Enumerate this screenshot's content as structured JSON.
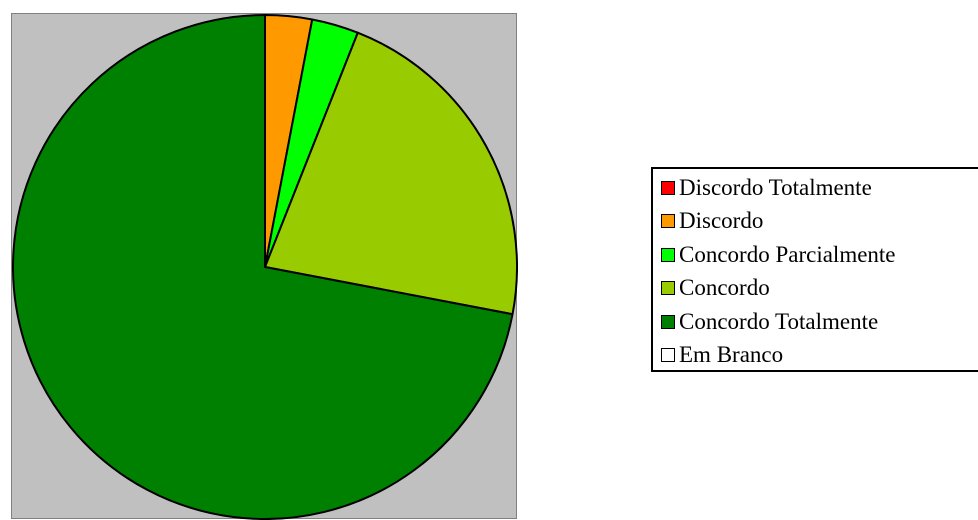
{
  "chart_data": {
    "type": "pie",
    "title": "",
    "start_angle_deg": 0,
    "direction": "clockwise",
    "slices": [
      {
        "label": "Discordo Totalmente",
        "value": 0,
        "color": "#ff0000"
      },
      {
        "label": "Discordo",
        "value": 3,
        "color": "#ff9900"
      },
      {
        "label": "Concordo Parcialmente",
        "value": 3,
        "color": "#00ff00"
      },
      {
        "label": "Concordo",
        "value": 22,
        "color": "#99cc00"
      },
      {
        "label": "Concordo Totalmente",
        "value": 72,
        "color": "#008000"
      },
      {
        "label": "Em Branco",
        "value": 0,
        "color": "#ffffff"
      }
    ],
    "plot_background": "#c0c0c0",
    "legend_position": "right"
  }
}
